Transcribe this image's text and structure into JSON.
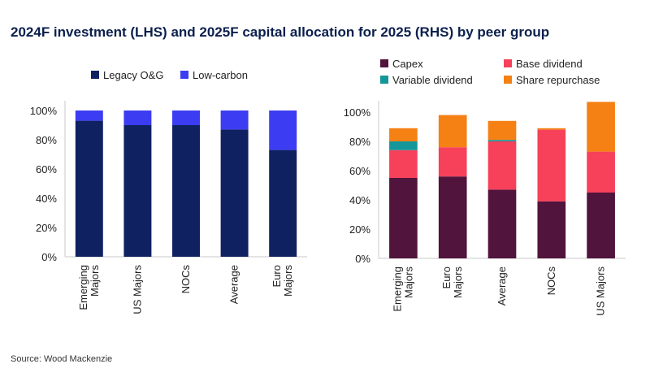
{
  "title": "2024F investment (LHS) and 2025F capital allocation for 2025 (RHS) by peer group",
  "source": "Source: Wood Mackenzie",
  "chart_data": [
    {
      "type": "bar",
      "stacked": true,
      "categories": [
        "Emerging Majors",
        "US Majors",
        "NOCs",
        "Average",
        "Euro Majors"
      ],
      "series": [
        {
          "name": "Legacy O&G",
          "color": "#0f2160",
          "values": [
            93,
            90,
            90,
            87,
            73
          ]
        },
        {
          "name": "Low-carbon",
          "color": "#3c3cf2",
          "values": [
            7,
            10,
            10,
            13,
            27
          ]
        }
      ],
      "ylim": [
        0,
        100
      ],
      "yticks": [
        "0%",
        "20%",
        "40%",
        "60%",
        "80%",
        "100%"
      ],
      "legend": "top",
      "grid": false
    },
    {
      "type": "bar",
      "stacked": true,
      "categories": [
        "Emerging Majors",
        "Euro Majors",
        "Average",
        "NOCs",
        "US Majors"
      ],
      "series": [
        {
          "name": "Capex",
          "color": "#51143c",
          "values": [
            55,
            56,
            47,
            39,
            45
          ]
        },
        {
          "name": "Base dividend",
          "color": "#f7405a",
          "values": [
            19,
            20,
            33,
            49,
            28
          ]
        },
        {
          "name": "Variable dividend",
          "color": "#15979a",
          "values": [
            6,
            0,
            1,
            0,
            0
          ]
        },
        {
          "name": "Share repurchase",
          "color": "#f58014",
          "values": [
            9,
            22,
            13,
            1,
            34
          ]
        }
      ],
      "ylim": [
        0,
        100
      ],
      "yticks": [
        "0%",
        "20%",
        "40%",
        "60%",
        "80%",
        "100%"
      ],
      "legend": "top",
      "grid": false
    }
  ]
}
